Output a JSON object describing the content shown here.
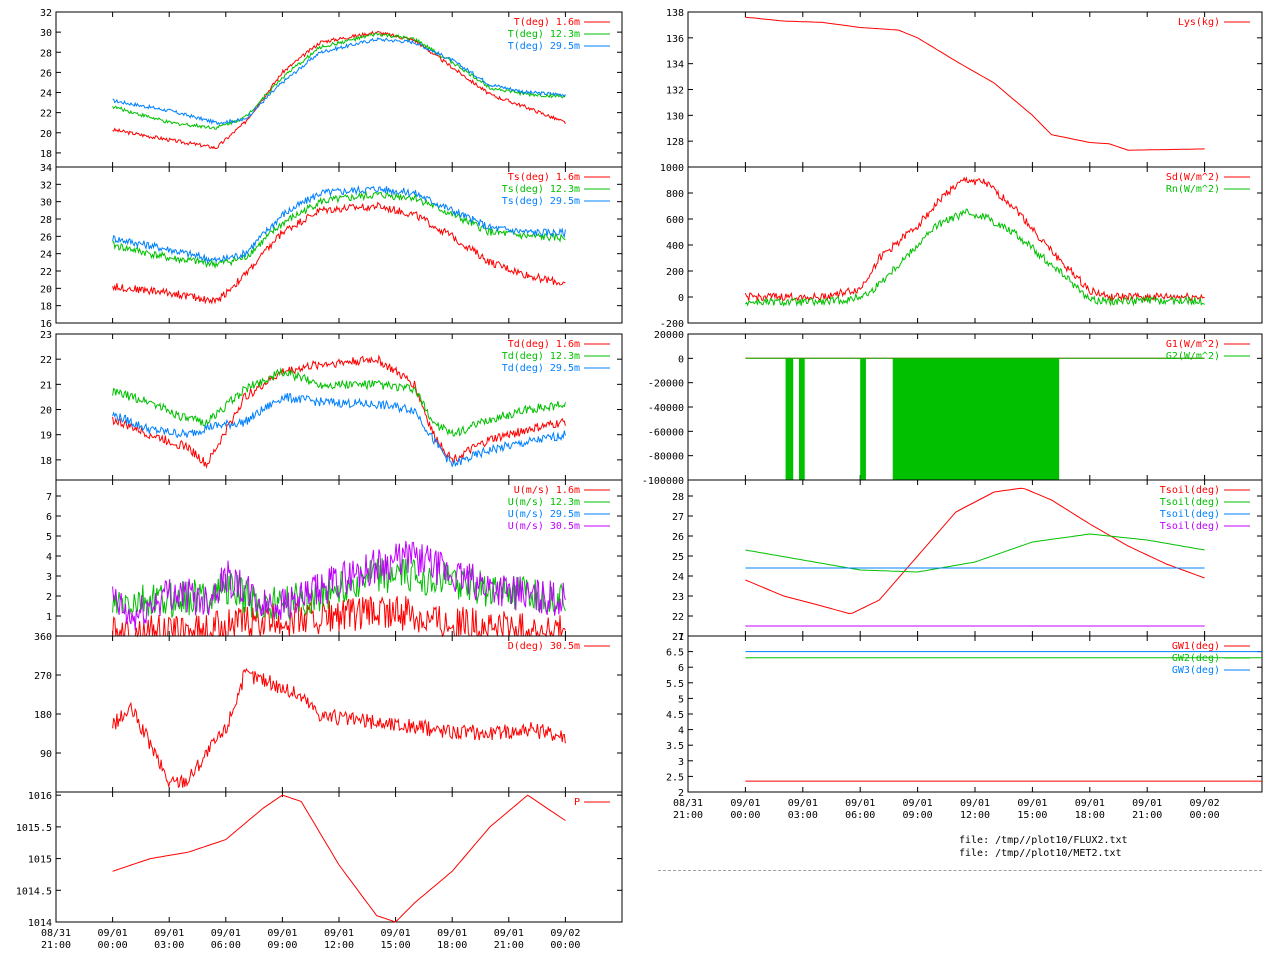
{
  "files": [
    "file: /tmp//plot10/FLUX2.txt",
    "file: /tmp//plot10/MET2.txt"
  ],
  "colors": {
    "red": "#ff0000",
    "green": "#00c000",
    "blue": "#0080ff",
    "purple": "#c000ff",
    "axis": "#000000"
  },
  "chart_data": [
    {
      "type": "line",
      "id": "T",
      "xlim": [
        -3,
        27
      ],
      "ylim": [
        16.6,
        32
      ],
      "yticks": [
        18,
        20,
        22,
        24,
        26,
        28,
        30,
        32
      ],
      "series": [
        {
          "name": "T(deg)  1.6m",
          "color": "red",
          "x": [
            0,
            3,
            5.5,
            7,
            9,
            11,
            14,
            16,
            18,
            20,
            22,
            24
          ],
          "values": [
            20.3,
            19.3,
            18.5,
            21.0,
            26.0,
            29.0,
            30.0,
            29.2,
            26.5,
            23.8,
            22.5,
            21.0
          ]
        },
        {
          "name": "T(deg) 12.3m",
          "color": "green",
          "x": [
            0,
            3,
            5.5,
            7,
            9,
            11,
            14,
            16,
            18,
            20,
            22,
            24
          ],
          "values": [
            22.6,
            21.0,
            20.5,
            21.5,
            25.5,
            28.5,
            29.8,
            29.3,
            27.0,
            24.5,
            23.8,
            23.6
          ]
        },
        {
          "name": "T(deg) 29.5m",
          "color": "blue",
          "x": [
            0,
            3,
            5.5,
            7,
            9,
            11,
            14,
            16,
            18,
            20,
            22,
            24
          ],
          "values": [
            23.2,
            22.2,
            21.0,
            21.3,
            25.0,
            28.0,
            29.3,
            29.0,
            27.2,
            24.8,
            24.0,
            23.8
          ]
        }
      ]
    },
    {
      "type": "line",
      "id": "Ts",
      "xlim": [
        -3,
        27
      ],
      "ylim": [
        16,
        34
      ],
      "yticks": [
        16,
        18,
        20,
        22,
        24,
        26,
        28,
        30,
        32,
        34
      ],
      "series": [
        {
          "name": "Ts(deg)  1.6m",
          "color": "red",
          "x": [
            0,
            3,
            5.5,
            7,
            9,
            11,
            14,
            16,
            18,
            20,
            22,
            24
          ],
          "values": [
            20.2,
            19.5,
            18.5,
            21.5,
            26.5,
            29.0,
            29.5,
            28.5,
            26.0,
            23.0,
            21.5,
            20.5
          ]
        },
        {
          "name": "Ts(deg) 12.3m",
          "color": "green",
          "x": [
            0,
            3,
            5.5,
            7,
            9,
            11,
            14,
            16,
            18,
            20,
            22,
            24
          ],
          "values": [
            25.0,
            23.5,
            22.8,
            23.5,
            27.5,
            30.0,
            30.8,
            30.5,
            28.5,
            26.5,
            26.0,
            25.8
          ]
        },
        {
          "name": "Ts(deg) 29.5m",
          "color": "blue",
          "x": [
            0,
            3,
            5.5,
            7,
            9,
            11,
            14,
            16,
            18,
            20,
            22,
            24
          ],
          "values": [
            25.8,
            24.5,
            23.2,
            24.0,
            28.5,
            31.0,
            31.5,
            31.0,
            29.0,
            27.0,
            26.5,
            26.4
          ]
        }
      ]
    },
    {
      "type": "line",
      "id": "Td",
      "xlim": [
        -3,
        27
      ],
      "ylim": [
        17.2,
        23
      ],
      "yticks": [
        18,
        19,
        20,
        21,
        22,
        23
      ],
      "series": [
        {
          "name": "Td(deg)  1.6m",
          "color": "red",
          "x": [
            0,
            2,
            4,
            5,
            7,
            9,
            11,
            14,
            16,
            17,
            18,
            20,
            22,
            24
          ],
          "values": [
            19.6,
            19.0,
            18.5,
            17.8,
            20.5,
            21.5,
            21.8,
            22.0,
            21.0,
            19.0,
            18.0,
            18.8,
            19.2,
            19.5
          ]
        },
        {
          "name": "Td(deg) 12.3m",
          "color": "green",
          "x": [
            0,
            2,
            4,
            5,
            7,
            9,
            11,
            14,
            16,
            17,
            18,
            20,
            22,
            24
          ],
          "values": [
            20.7,
            20.3,
            19.6,
            19.5,
            20.8,
            21.5,
            21.0,
            21.0,
            20.8,
            19.5,
            19.0,
            19.6,
            20.0,
            20.2
          ]
        },
        {
          "name": "Td(deg) 29.5m",
          "color": "blue",
          "x": [
            0,
            2,
            4,
            5,
            7,
            9,
            11,
            14,
            16,
            17,
            18,
            20,
            22,
            24
          ],
          "values": [
            19.8,
            19.2,
            19.0,
            19.3,
            19.5,
            20.5,
            20.3,
            20.2,
            20.0,
            18.8,
            17.8,
            18.4,
            18.7,
            19.0
          ]
        }
      ]
    },
    {
      "type": "line",
      "id": "U",
      "xlim": [
        -3,
        27
      ],
      "ylim": [
        0,
        7.8
      ],
      "yticks": [
        1,
        2,
        3,
        4,
        5,
        6,
        7
      ],
      "series": [
        {
          "name": "U(m/s)  1.6m",
          "color": "red",
          "x": [
            0,
            5,
            6,
            8,
            10,
            12,
            14,
            16,
            18,
            20,
            24
          ],
          "values": [
            0.1,
            0.2,
            0.6,
            0.7,
            0.9,
            1.0,
            1.2,
            1.1,
            0.7,
            0.4,
            0.2
          ]
        },
        {
          "name": "U(m/s) 12.3m",
          "color": "green",
          "x": [
            0,
            5,
            6,
            8,
            10,
            12,
            14,
            16,
            18,
            20,
            24
          ],
          "values": [
            1.5,
            2.0,
            2.5,
            1.5,
            1.8,
            2.4,
            3.0,
            3.0,
            2.8,
            2.3,
            1.8
          ]
        },
        {
          "name": "U(m/s) 29.5m",
          "color": "blue",
          "x": [],
          "values": []
        },
        {
          "name": "U(m/s) 30.5m",
          "color": "purple",
          "x": [
            0,
            1,
            3,
            5,
            6,
            8,
            10,
            12,
            14,
            16,
            18,
            20,
            22,
            24
          ],
          "values": [
            1.8,
            0.8,
            2.2,
            1.8,
            3.0,
            1.5,
            1.8,
            2.8,
            3.5,
            4.0,
            3.0,
            2.5,
            2.0,
            1.8
          ]
        }
      ]
    },
    {
      "type": "line",
      "id": "D",
      "xlim": [
        -3,
        27
      ],
      "ylim": [
        0,
        360
      ],
      "yticks": [
        90,
        180,
        270,
        360
      ],
      "series": [
        {
          "name": "D(deg)  30.5m",
          "color": "red",
          "x": [
            0,
            1,
            2,
            3,
            4,
            5,
            6,
            7,
            8,
            9,
            10,
            11,
            12,
            14,
            16,
            18,
            20,
            22,
            24
          ],
          "values": [
            155,
            190,
            110,
            20,
            30,
            90,
            145,
            270,
            260,
            240,
            220,
            180,
            170,
            160,
            150,
            140,
            135,
            145,
            130
          ]
        }
      ]
    },
    {
      "type": "line",
      "id": "P",
      "xlim": [
        -3,
        27
      ],
      "ylim": [
        1014,
        1016.05
      ],
      "yticks": [
        1014,
        1014.5,
        1015,
        1015.5,
        1016
      ],
      "series": [
        {
          "name": "P",
          "color": "red",
          "x": [
            0,
            2,
            4,
            6,
            8,
            9,
            10,
            12,
            14,
            15,
            16,
            18,
            20,
            22,
            24
          ],
          "values": [
            1014.8,
            1015.0,
            1015.1,
            1015.3,
            1015.8,
            1016.0,
            1015.9,
            1014.9,
            1014.1,
            1014.0,
            1014.3,
            1014.8,
            1015.5,
            1016.0,
            1015.6
          ]
        }
      ]
    },
    {
      "type": "line",
      "id": "Lys",
      "xlim": [
        -3,
        27
      ],
      "ylim": [
        126,
        138
      ],
      "yticks": [
        128,
        130,
        132,
        134,
        136,
        138
      ],
      "series": [
        {
          "name": "Lys(kg)",
          "color": "red",
          "x": [
            0,
            2,
            4,
            6,
            8,
            9,
            11,
            13,
            15,
            16,
            18,
            19,
            20,
            24
          ],
          "values": [
            137.6,
            137.3,
            137.2,
            136.8,
            136.6,
            136.0,
            134.2,
            132.5,
            130.0,
            128.5,
            127.9,
            127.8,
            127.3,
            127.4
          ]
        }
      ]
    },
    {
      "type": "line",
      "id": "Sd",
      "xlim": [
        -3,
        27
      ],
      "ylim": [
        -200,
        1000
      ],
      "yticks": [
        -200,
        0,
        200,
        400,
        600,
        800,
        1000
      ],
      "series": [
        {
          "name": "Sd(W/m^2)",
          "color": "red",
          "x": [
            0,
            4,
            6,
            7,
            9,
            10.5,
            11.5,
            12.5,
            14,
            16,
            18,
            19,
            24
          ],
          "values": [
            0,
            0,
            60,
            300,
            550,
            800,
            900,
            880,
            700,
            350,
            50,
            0,
            0
          ]
        },
        {
          "name": "Rn(W/m^2)",
          "color": "green",
          "x": [
            0,
            4,
            5.5,
            6.5,
            8,
            10,
            11.5,
            12.5,
            14,
            16,
            18,
            19,
            24
          ],
          "values": [
            -40,
            -40,
            -20,
            30,
            250,
            550,
            650,
            620,
            500,
            250,
            -20,
            -30,
            -30
          ]
        }
      ]
    },
    {
      "type": "line",
      "id": "G",
      "xlim": [
        -3,
        27
      ],
      "ylim": [
        -100000,
        20000
      ],
      "yticks": [
        -100000,
        -80000,
        -60000,
        -40000,
        -20000,
        0,
        20000
      ],
      "series": [
        {
          "name": "G1(W/m^2)",
          "color": "red",
          "x": [
            0,
            24
          ],
          "values": [
            0,
            0
          ]
        },
        {
          "name": "G2(W/m^2)",
          "color": "green",
          "x": [
            0,
            24
          ],
          "values": [
            0,
            0
          ],
          "filled_bands": [
            [
              2.1,
              2.5
            ],
            [
              2.8,
              3.1
            ],
            [
              6.0,
              6.3
            ],
            [
              7.7,
              16.4
            ]
          ]
        }
      ]
    },
    {
      "type": "line",
      "id": "Tsoil",
      "xlim": [
        -3,
        27
      ],
      "ylim": [
        21,
        28.8
      ],
      "yticks": [
        21,
        22,
        23,
        24,
        25,
        26,
        27,
        28
      ],
      "series": [
        {
          "name": "Tsoil(deg)",
          "color": "red",
          "x": [
            0,
            2,
            4,
            5.5,
            7,
            9,
            11,
            13,
            14.5,
            16,
            18,
            20,
            22,
            24
          ],
          "values": [
            23.8,
            23.0,
            22.5,
            22.1,
            22.8,
            25.0,
            27.2,
            28.2,
            28.4,
            27.8,
            26.6,
            25.5,
            24.6,
            23.9
          ]
        },
        {
          "name": "Tsoil(deg)",
          "color": "green",
          "x": [
            0,
            3,
            6,
            9,
            12,
            15,
            18,
            21,
            24
          ],
          "values": [
            25.3,
            24.8,
            24.3,
            24.2,
            24.7,
            25.7,
            26.1,
            25.8,
            25.3
          ]
        },
        {
          "name": "Tsoil(deg)",
          "color": "blue",
          "x": [
            0,
            24
          ],
          "values": [
            24.4,
            24.4
          ]
        },
        {
          "name": "Tsoil(deg)",
          "color": "purple",
          "x": [
            0,
            24
          ],
          "values": [
            21.5,
            21.5
          ]
        }
      ]
    },
    {
      "type": "line",
      "id": "GW",
      "xlim": [
        -3,
        27
      ],
      "ylim": [
        2,
        7
      ],
      "yticks": [
        2,
        2.5,
        3,
        3.5,
        4,
        4.5,
        5,
        5.5,
        6,
        6.5,
        7
      ],
      "xticks": [
        -3,
        0,
        3,
        6,
        9,
        12,
        15,
        18,
        21,
        24,
        27
      ],
      "xticklabels": [
        [
          "08/31",
          "21:00"
        ],
        [
          "09/01",
          "00:00"
        ],
        [
          "09/01",
          "03:00"
        ],
        [
          "09/01",
          "06:00"
        ],
        [
          "09/01",
          "09:00"
        ],
        [
          "09/01",
          "12:00"
        ],
        [
          "09/01",
          "15:00"
        ],
        [
          "09/01",
          "18:00"
        ],
        [
          "09/01",
          "21:00"
        ],
        [
          "09/02",
          "00:00"
        ]
      ],
      "series": [
        {
          "name": "GW1(deg)",
          "color": "red",
          "x": [
            0,
            27
          ],
          "values": [
            2.35,
            2.35
          ]
        },
        {
          "name": "GW2(deg)",
          "color": "green",
          "x": [
            0,
            27
          ],
          "values": [
            6.3,
            6.3
          ]
        },
        {
          "name": "GW3(deg)",
          "color": "blue",
          "x": [
            0,
            27
          ],
          "values": [
            6.5,
            6.5
          ]
        }
      ]
    }
  ],
  "left_xticklabels": [
    [
      "08/31",
      "21:00"
    ],
    [
      "09/01",
      "00:00"
    ],
    [
      "09/01",
      "03:00"
    ],
    [
      "09/01",
      "06:00"
    ],
    [
      "09/01",
      "09:00"
    ],
    [
      "09/01",
      "12:00"
    ],
    [
      "09/01",
      "15:00"
    ],
    [
      "09/01",
      "18:00"
    ],
    [
      "09/01",
      "21:00"
    ],
    [
      "09/02",
      "00:00"
    ]
  ]
}
